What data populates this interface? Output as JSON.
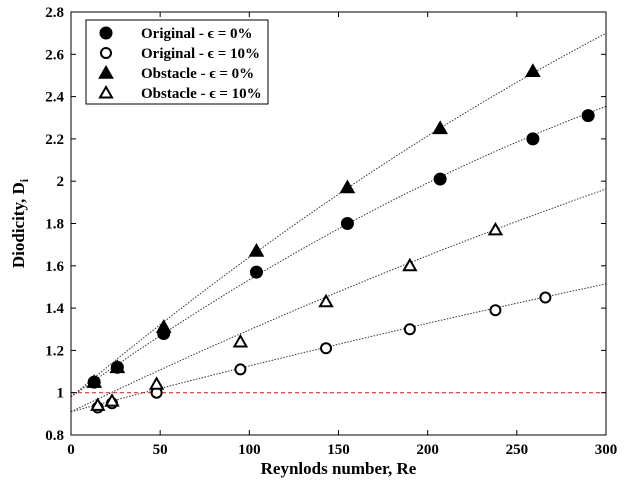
{
  "chart_data": {
    "type": "scatter",
    "xlabel": "Reynlods number, Re",
    "ylabel": "Diodicity, D",
    "ylabel_sub": "i",
    "xlim": [
      0,
      300
    ],
    "ylim": [
      0.8,
      2.8
    ],
    "x_ticks": [
      {
        "value": 0,
        "label": "0"
      },
      {
        "value": 50,
        "label": "50"
      },
      {
        "value": 100,
        "label": "100"
      },
      {
        "value": 150,
        "label": "150"
      },
      {
        "value": 200,
        "label": "200"
      },
      {
        "value": 250,
        "label": "250"
      },
      {
        "value": 300,
        "label": "300"
      }
    ],
    "y_ticks": [
      {
        "value": 0.8,
        "label": "0.8"
      },
      {
        "value": 1.0,
        "label": "1"
      },
      {
        "value": 1.2,
        "label": "1.2"
      },
      {
        "value": 1.4,
        "label": "1.4"
      },
      {
        "value": 1.6,
        "label": "1.6"
      },
      {
        "value": 1.8,
        "label": "1.8"
      },
      {
        "value": 2.0,
        "label": "2"
      },
      {
        "value": 2.2,
        "label": "2.2"
      },
      {
        "value": 2.4,
        "label": "2.4"
      },
      {
        "value": 2.6,
        "label": "2.6"
      },
      {
        "value": 2.8,
        "label": "2.8"
      }
    ],
    "grid": false,
    "legend_position": "top-left",
    "reference_line": {
      "y": 1.0,
      "color": "#e03030",
      "style": "dashed"
    },
    "series": [
      {
        "name": "Original - ϵ = 0%",
        "marker": "circle-filled",
        "x": [
          13,
          26,
          52,
          104,
          155,
          207,
          259,
          290
        ],
        "y": [
          1.05,
          1.12,
          1.28,
          1.57,
          1.8,
          2.01,
          2.2,
          2.31
        ],
        "fit": {
          "type": "quadratic",
          "coef": [
            0.98,
            0.00602,
            -4.8e-06
          ],
          "x_end": 300
        }
      },
      {
        "name": "Original - ϵ = 10%",
        "marker": "circle-open",
        "x": [
          15,
          23,
          48,
          95,
          143,
          190,
          238,
          266
        ],
        "y": [
          0.93,
          0.95,
          1.0,
          1.11,
          1.21,
          1.3,
          1.39,
          1.45
        ],
        "fit": {
          "type": "quadratic",
          "coef": [
            0.91,
            0.00224,
            -7.5e-07
          ],
          "x_end": 300
        }
      },
      {
        "name": "Obstacle - ϵ = 0%",
        "marker": "triangle-filled",
        "x": [
          13,
          26,
          52,
          104,
          155,
          207,
          259
        ],
        "y": [
          1.05,
          1.12,
          1.31,
          1.67,
          1.97,
          2.25,
          2.52
        ],
        "fit": {
          "type": "quadratic",
          "coef": [
            0.98,
            0.00705,
            -4.4e-06
          ],
          "x_end": 300
        }
      },
      {
        "name": "Obstacle - ϵ = 10%",
        "marker": "triangle-open",
        "x": [
          15,
          23,
          48,
          95,
          143,
          190,
          238
        ],
        "y": [
          0.94,
          0.96,
          1.04,
          1.24,
          1.43,
          1.6,
          1.77
        ],
        "fit": {
          "type": "quadratic",
          "coef": [
            0.91,
            0.00405,
            -1.8e-06
          ],
          "x_end": 300
        }
      }
    ]
  }
}
